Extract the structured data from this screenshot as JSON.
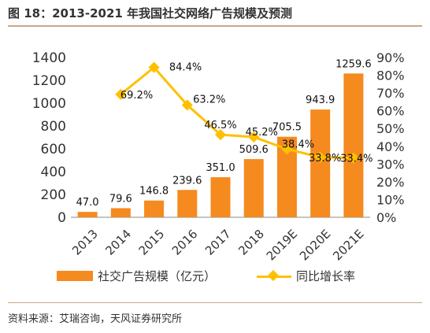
{
  "title": "图 18：2013-2021 年我国社交网络广告规模及预测",
  "source": "资料来源：艾瑞咨询，天风证券研究所",
  "colors": {
    "bar": "#f58a1f",
    "line": "#ffc000",
    "accent_rule": "#c9a888"
  },
  "chart_data": {
    "type": "bar",
    "categories": [
      "2013",
      "2014",
      "2015",
      "2016",
      "2017",
      "2018",
      "2019E",
      "2020E",
      "2021E"
    ],
    "series": [
      {
        "name": "社交广告规模（亿元）",
        "type": "bar",
        "axis": "left",
        "values": [
          47.0,
          79.6,
          146.8,
          239.6,
          351.0,
          509.6,
          705.5,
          943.9,
          1259.6
        ],
        "labels": [
          "47.0",
          "79.6",
          "146.8",
          "239.6",
          "351.0",
          "509.6",
          "705.5",
          "943.9",
          "1259.6"
        ]
      },
      {
        "name": "同比增长率",
        "type": "line",
        "axis": "right",
        "values": [
          null,
          69.2,
          84.4,
          63.2,
          46.5,
          45.2,
          38.4,
          33.8,
          33.4
        ],
        "labels": [
          null,
          "69.2%",
          "84.4%",
          "63.2%",
          "46.5%",
          "45.2%",
          "38.4%",
          "33.8%",
          "33.4%"
        ]
      }
    ],
    "ylim_left": [
      0,
      1400
    ],
    "yticks_left": [
      "0",
      "200",
      "400",
      "600",
      "800",
      "1000",
      "1200",
      "1400"
    ],
    "ylim_right": [
      0,
      90
    ],
    "yticks_right": [
      "0%",
      "10%",
      "20%",
      "30%",
      "40%",
      "50%",
      "60%",
      "70%",
      "80%",
      "90%"
    ],
    "grid": false,
    "legend_position": "bottom"
  }
}
